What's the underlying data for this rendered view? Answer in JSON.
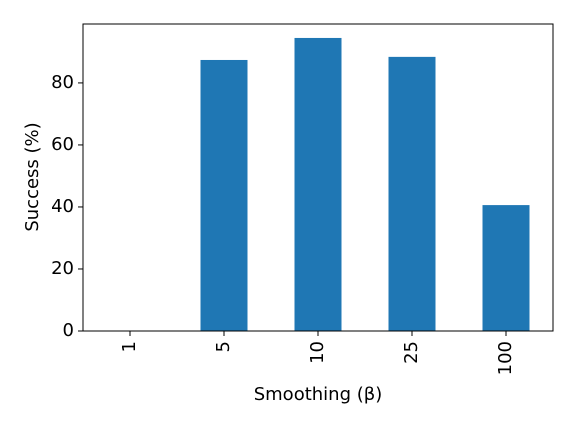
{
  "chart_data": {
    "type": "bar",
    "x_label": "Smoothing (β)",
    "y_label": "Success (%)",
    "categories": [
      "1",
      "5",
      "10",
      "25",
      "100"
    ],
    "values": [
      0,
      87.4,
      94.5,
      88.4,
      40.6
    ],
    "color": "#1f77b4",
    "ylim": [
      0,
      99
    ],
    "yticks": [
      0,
      20,
      40,
      60,
      80
    ],
    "grid": false
  }
}
